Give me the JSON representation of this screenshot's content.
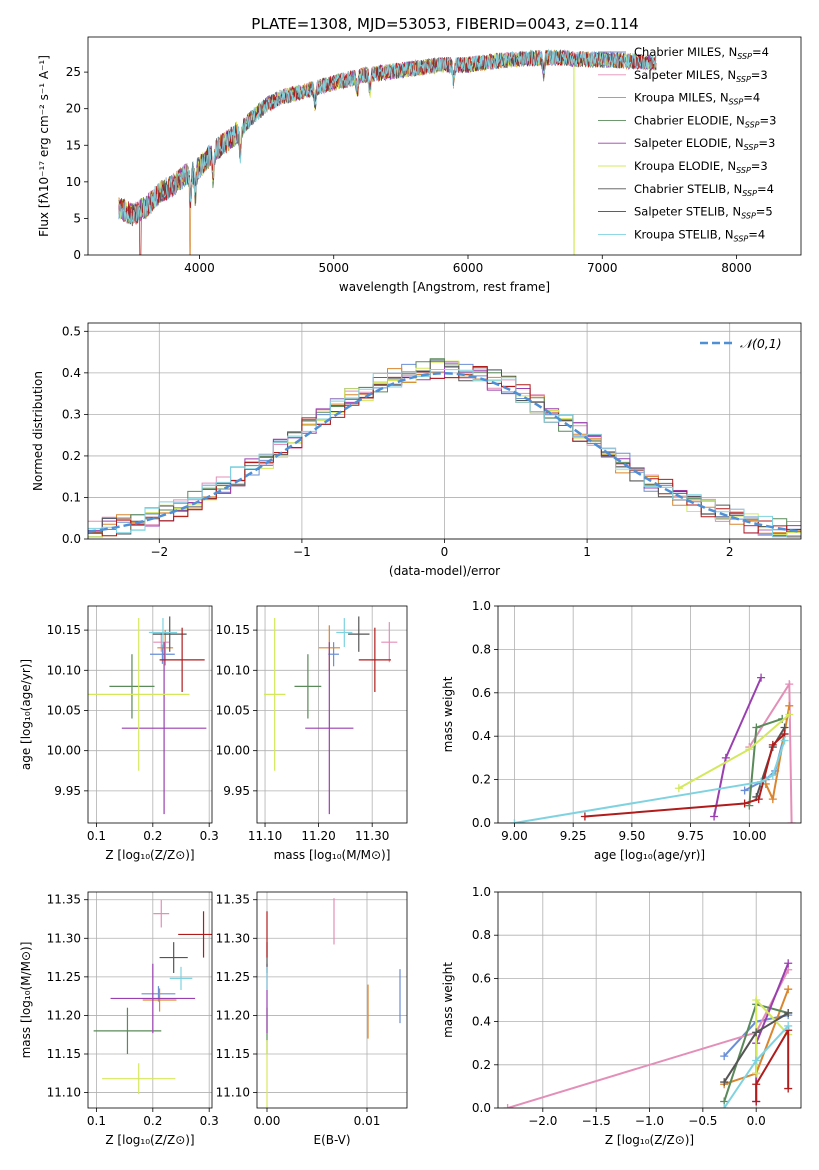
{
  "title": "PLATE=1308, MJD=53053, FIBERID=0043, z=0.114",
  "colors": {
    "chabrier_miles": "#6a8fd6",
    "salpeter_miles": "#e38fb8",
    "kroupa_miles": "#d9862e",
    "chabrier_elodie": "#5a8a5a",
    "salpeter_elodie": "#9a3fb0",
    "kroupa_elodie": "#d4e85c",
    "chabrier_stelib": "#555555",
    "salpeter_stelib": "#b01c1c",
    "kroupa_stelib": "#7fd3e0",
    "normal": "#4f8fd6"
  },
  "chart_data": [
    {
      "type": "line",
      "panel": "spectrum",
      "title": "PLATE=1308, MJD=53053, FIBERID=0043, z=0.114",
      "xlabel": "wavelength [Angstrom, rest frame]",
      "ylabel": "Flux [fλ10⁻¹⁷ erg cm⁻² s⁻¹ A⁻¹]",
      "xlim": [
        3170,
        8480
      ],
      "ylim": [
        0,
        29.8
      ],
      "xticks": [
        4000,
        5000,
        6000,
        7000,
        8000
      ],
      "yticks": [
        0,
        5,
        10,
        15,
        20,
        25
      ],
      "legend": [
        {
          "key": "chabrier_miles",
          "prefix": "Chabrier MILES, N",
          "sub": "SSP",
          "suffix": "=4"
        },
        {
          "key": "salpeter_miles",
          "prefix": "Salpeter MILES, N",
          "sub": "SSP",
          "suffix": "=3"
        },
        {
          "key": "kroupa_miles",
          "prefix": "Kroupa MILES, N",
          "sub": "SSP",
          "suffix": "=4"
        },
        {
          "key": "chabrier_elodie",
          "prefix": "Chabrier ELODIE, N",
          "sub": "SSP",
          "suffix": "=3"
        },
        {
          "key": "salpeter_elodie",
          "prefix": "Salpeter ELODIE, N",
          "sub": "SSP",
          "suffix": "=3"
        },
        {
          "key": "kroupa_elodie",
          "prefix": "Kroupa ELODIE, N",
          "sub": "SSP",
          "suffix": "=3"
        },
        {
          "key": "chabrier_stelib",
          "prefix": "Chabrier STELIB, N",
          "sub": "SSP",
          "suffix": "=4"
        },
        {
          "key": "salpeter_stelib",
          "prefix": "Salpeter STELIB, N",
          "sub": "SSP",
          "suffix": "=5"
        },
        {
          "key": "kroupa_stelib",
          "prefix": "Kroupa STELIB, N",
          "sub": "SSP",
          "suffix": "=4"
        }
      ],
      "legend_position": "upper right",
      "continuum": {
        "x": [
          3400,
          3500,
          3600,
          3700,
          3800,
          3900,
          4000,
          4100,
          4200,
          4300,
          4400,
          4500,
          4600,
          4800,
          5000,
          5200,
          5400,
          5600,
          5800,
          6000,
          6200,
          6400,
          6600,
          6800,
          7000,
          7200,
          7400
        ],
        "y": [
          6.5,
          5.5,
          6.5,
          8.5,
          9.5,
          11,
          12,
          14,
          15.5,
          17,
          19,
          20.5,
          21.5,
          22.5,
          23.5,
          24.5,
          25,
          25.5,
          26,
          26,
          26.5,
          26.8,
          27,
          26.8,
          26.7,
          26.5,
          26.3
        ]
      },
      "absorption_lines": [
        3934,
        3969,
        4102,
        4304,
        4861,
        5175,
        5270,
        5892,
        6563
      ],
      "dropouts": [
        {
          "series": "salpeter_stelib",
          "x": 3560
        },
        {
          "series": "kroupa_miles",
          "x": 3930
        },
        {
          "series": "kroupa_elodie",
          "x": 6790
        },
        {
          "series": "salpeter_stelib",
          "x": 7420
        }
      ]
    },
    {
      "type": "histogram",
      "panel": "residuals",
      "xlabel": "(data-model)/error",
      "ylabel": "Normed distribution",
      "xlim": [
        -2.5,
        2.5
      ],
      "ylim": [
        0,
        0.52
      ],
      "xticks": [
        -2,
        -1,
        0,
        1,
        2
      ],
      "yticks": [
        0,
        0.1,
        0.2,
        0.3,
        0.4,
        0.5
      ],
      "legend": "𝒩(0,1)",
      "legend_position": "upper right",
      "bin_width": 0.1,
      "base_peak_center": -0.05
    },
    {
      "type": "scatter",
      "panel": "age-vs-Z",
      "errorbars": true,
      "xlabel": "Z [log₁₀(Z/Z⊙)]",
      "ylabel": "age  [log₁₀(age/yr)]",
      "xlim": [
        0.085,
        0.305
      ],
      "ylim": [
        9.91,
        10.18
      ],
      "xticks": [
        0.1,
        0.2,
        0.3
      ],
      "yticks": [
        9.95,
        10.0,
        10.05,
        10.1,
        10.15
      ],
      "points": [
        {
          "key": "chabrier_miles",
          "x": 0.217,
          "xerr": 0.022,
          "y": 10.12,
          "yerr": 0.012
        },
        {
          "key": "salpeter_miles",
          "x": 0.215,
          "xerr": 0.014,
          "y": 10.135,
          "yerr": 0.012
        },
        {
          "key": "kroupa_miles",
          "x": 0.222,
          "xerr": 0.014,
          "y": 10.128,
          "yerr": 0.022
        },
        {
          "key": "chabrier_elodie",
          "x": 0.163,
          "xerr": 0.04,
          "y": 10.08,
          "yerr": 0.04
        },
        {
          "key": "salpeter_elodie",
          "x": 0.22,
          "xerr": 0.075,
          "y": 10.028,
          "yerr": 0.107
        },
        {
          "key": "kroupa_elodie",
          "x": 0.175,
          "xerr": 0.09,
          "y": 10.07,
          "yerr": 0.095
        },
        {
          "key": "chabrier_stelib",
          "x": 0.23,
          "xerr": 0.03,
          "y": 10.145,
          "yerr": 0.022
        },
        {
          "key": "salpeter_stelib",
          "x": 0.252,
          "xerr": 0.04,
          "y": 10.113,
          "yerr": 0.04
        },
        {
          "key": "kroupa_stelib",
          "x": 0.218,
          "xerr": 0.025,
          "y": 10.147,
          "yerr": 0.018
        }
      ]
    },
    {
      "type": "scatter",
      "panel": "age-vs-mass",
      "errorbars": true,
      "xlabel": "mass [log₁₀(M/M⊙)]",
      "ylabel": "",
      "xlim": [
        11.085,
        11.365
      ],
      "ylim": [
        9.91,
        10.18
      ],
      "xticks": [
        11.1,
        11.2,
        11.3
      ],
      "yticks": [
        9.95,
        10.0,
        10.05,
        10.1,
        10.15
      ],
      "points": [
        {
          "key": "chabrier_miles",
          "x": 11.228,
          "xerr": 0.01,
          "y": 10.12,
          "yerr": 0.015
        },
        {
          "key": "salpeter_miles",
          "x": 11.332,
          "xerr": 0.015,
          "y": 10.135,
          "yerr": 0.025
        },
        {
          "key": "kroupa_miles",
          "x": 11.22,
          "xerr": 0.02,
          "y": 10.128,
          "yerr": 0.028
        },
        {
          "key": "chabrier_elodie",
          "x": 11.18,
          "xerr": 0.025,
          "y": 10.08,
          "yerr": 0.04
        },
        {
          "key": "salpeter_elodie",
          "x": 11.22,
          "xerr": 0.045,
          "y": 10.028,
          "yerr": 0.107
        },
        {
          "key": "kroupa_elodie",
          "x": 11.118,
          "xerr": 0.02,
          "y": 10.07,
          "yerr": 0.095
        },
        {
          "key": "chabrier_stelib",
          "x": 11.275,
          "xerr": 0.02,
          "y": 10.145,
          "yerr": 0.022
        },
        {
          "key": "salpeter_stelib",
          "x": 11.305,
          "xerr": 0.03,
          "y": 10.113,
          "yerr": 0.04
        },
        {
          "key": "kroupa_stelib",
          "x": 11.248,
          "xerr": 0.015,
          "y": 10.147,
          "yerr": 0.018
        }
      ]
    },
    {
      "type": "line",
      "panel": "mass-weight-vs-age",
      "xlabel": "age  [log₁₀(age/yr)]",
      "ylabel": "mass weight",
      "xlim": [
        8.93,
        10.22
      ],
      "ylim": [
        0,
        1.0
      ],
      "xticks": [
        9.0,
        9.25,
        9.5,
        9.75,
        10.0
      ],
      "xticklabels": [
        "9.00",
        "9.25",
        "9.50",
        "9.75",
        "10.00"
      ],
      "yticks": [
        0,
        0.2,
        0.4,
        0.6,
        0.8,
        1.0
      ],
      "series": [
        {
          "key": "chabrier_miles",
          "x": [
            9.98,
            10.07,
            10.11,
            10.15
          ],
          "y": [
            0.15,
            0.2,
            0.24,
            0.41
          ]
        },
        {
          "key": "salpeter_miles",
          "x": [
            10.0,
            10.17,
            10.18
          ],
          "y": [
            0.35,
            0.64,
            0.0
          ]
        },
        {
          "key": "kroupa_miles",
          "x": [
            10.07,
            10.1,
            10.17
          ],
          "y": [
            0.18,
            0.11,
            0.54
          ]
        },
        {
          "key": "chabrier_elodie",
          "x": [
            10.0,
            10.03,
            10.14
          ],
          "y": [
            0.08,
            0.44,
            0.48
          ]
        },
        {
          "key": "salpeter_elodie",
          "x": [
            9.85,
            9.9,
            10.05
          ],
          "y": [
            0.03,
            0.3,
            0.67
          ]
        },
        {
          "key": "kroupa_elodie",
          "x": [
            9.7,
            10.0,
            10.17
          ],
          "y": [
            0.16,
            0.34,
            0.5
          ]
        },
        {
          "key": "chabrier_stelib",
          "x": [
            10.03,
            10.1,
            10.15
          ],
          "y": [
            0.12,
            0.35,
            0.44
          ]
        },
        {
          "key": "salpeter_stelib",
          "x": [
            9.3,
            9.98,
            10.04,
            10.1,
            10.15
          ],
          "y": [
            0.03,
            0.09,
            0.11,
            0.36,
            0.41
          ]
        },
        {
          "key": "kroupa_stelib",
          "x": [
            9.0,
            10.05,
            10.1,
            10.15
          ],
          "y": [
            0.0,
            0.19,
            0.22,
            0.38
          ]
        }
      ]
    },
    {
      "type": "scatter",
      "panel": "mass-vs-Z",
      "errorbars": true,
      "xlabel": "Z [log₁₀(Z/Z⊙)]",
      "ylabel": "mass [log₁₀(M/M⊙)]",
      "xlim": [
        0.085,
        0.305
      ],
      "ylim": [
        11.08,
        11.36
      ],
      "xticks": [
        0.1,
        0.2,
        0.3
      ],
      "yticks": [
        11.1,
        11.15,
        11.2,
        11.25,
        11.3,
        11.35
      ],
      "points": [
        {
          "key": "chabrier_miles",
          "x": 0.21,
          "xerr": 0.03,
          "y": 11.228,
          "yerr": 0.01
        },
        {
          "key": "salpeter_miles",
          "x": 0.215,
          "xerr": 0.014,
          "y": 11.332,
          "yerr": 0.018
        },
        {
          "key": "kroupa_miles",
          "x": 0.212,
          "xerr": 0.03,
          "y": 11.22,
          "yerr": 0.015
        },
        {
          "key": "chabrier_elodie",
          "x": 0.155,
          "xerr": 0.06,
          "y": 11.18,
          "yerr": 0.03
        },
        {
          "key": "salpeter_elodie",
          "x": 0.2,
          "xerr": 0.075,
          "y": 11.222,
          "yerr": 0.045
        },
        {
          "key": "kroupa_elodie",
          "x": 0.175,
          "xerr": 0.065,
          "y": 11.118,
          "yerr": 0.02
        },
        {
          "key": "chabrier_stelib",
          "x": 0.237,
          "xerr": 0.025,
          "y": 11.275,
          "yerr": 0.02
        },
        {
          "key": "salpeter_stelib",
          "x": 0.29,
          "xerr": 0.045,
          "y": 11.305,
          "yerr": 0.03
        },
        {
          "key": "kroupa_stelib",
          "x": 0.25,
          "xerr": 0.02,
          "y": 11.248,
          "yerr": 0.015
        }
      ]
    },
    {
      "type": "scatter",
      "panel": "mass-vs-ebv",
      "errorbars": true,
      "xlabel": "E(B-V)",
      "ylabel": "",
      "xlim": [
        -0.001,
        0.014
      ],
      "ylim": [
        11.08,
        11.36
      ],
      "xticks": [
        0.0,
        0.01
      ],
      "xticklabels": [
        "0.00",
        "0.01"
      ],
      "yticks": [
        11.1,
        11.15,
        11.2,
        11.25,
        11.3,
        11.35
      ],
      "points": [
        {
          "key": "chabrier_miles",
          "x": 0.0133,
          "y": 11.225,
          "yerr": 0.035
        },
        {
          "key": "salpeter_miles",
          "x": 0.0067,
          "y": 11.322,
          "yerr": 0.03
        },
        {
          "key": "kroupa_miles",
          "x": 0.0101,
          "y": 11.205,
          "yerr": 0.035
        },
        {
          "key": "chabrier_elodie",
          "x": 0.0,
          "y": 11.18,
          "yerr": 0.03
        },
        {
          "key": "salpeter_elodie",
          "x": 0.0,
          "y": 11.222,
          "yerr": 0.045
        },
        {
          "key": "kroupa_elodie",
          "x": 0.0,
          "y": 11.118,
          "yerr": 0.05
        },
        {
          "key": "chabrier_stelib",
          "x": 0.0,
          "y": 11.275,
          "yerr": 0.02
        },
        {
          "key": "salpeter_stelib",
          "x": 0.0,
          "y": 11.305,
          "yerr": 0.03
        },
        {
          "key": "kroupa_stelib",
          "x": 0.0,
          "y": 11.248,
          "yerr": 0.015
        }
      ]
    },
    {
      "type": "line",
      "panel": "mass-weight-vs-Z",
      "xlabel": "Z [log₁₀(Z/Z⊙)]",
      "ylabel": "mass weight",
      "xlim": [
        -2.42,
        0.42
      ],
      "ylim": [
        0,
        1.0
      ],
      "xticks": [
        -2.0,
        -1.5,
        -1.0,
        -0.5,
        0.0
      ],
      "xticklabels": [
        "−2.0",
        "−1.5",
        "−1.0",
        "−0.5",
        "0.0"
      ],
      "yticks": [
        0,
        0.2,
        0.4,
        0.6,
        0.8,
        1.0
      ],
      "series": [
        {
          "key": "chabrier_miles",
          "x": [
            -0.3,
            0.0,
            0.3
          ],
          "y": [
            0.24,
            0.4,
            0.43
          ]
        },
        {
          "key": "salpeter_miles",
          "x": [
            -2.33,
            0.0,
            0.3
          ],
          "y": [
            0.0,
            0.35,
            0.64
          ]
        },
        {
          "key": "kroupa_miles",
          "x": [
            -0.3,
            0.0,
            0.3
          ],
          "y": [
            0.11,
            0.16,
            0.55
          ]
        },
        {
          "key": "chabrier_elodie",
          "x": [
            -0.3,
            0.0,
            0.3
          ],
          "y": [
            0.03,
            0.48,
            0.44
          ]
        },
        {
          "key": "salpeter_elodie",
          "x": [
            0.0,
            0.0,
            0.3
          ],
          "y": [
            0.03,
            0.3,
            0.67
          ]
        },
        {
          "key": "kroupa_elodie",
          "x": [
            0.0,
            0.0,
            0.3
          ],
          "y": [
            0.16,
            0.5,
            0.34
          ]
        },
        {
          "key": "chabrier_stelib",
          "x": [
            -0.3,
            0.0,
            0.3
          ],
          "y": [
            0.12,
            0.35,
            0.44
          ]
        },
        {
          "key": "salpeter_stelib",
          "x": [
            0.0,
            0.0,
            0.3,
            0.3
          ],
          "y": [
            0.03,
            0.11,
            0.36,
            0.09
          ]
        },
        {
          "key": "kroupa_stelib",
          "x": [
            -0.3,
            0.0,
            0.3
          ],
          "y": [
            0.0,
            0.22,
            0.38
          ]
        }
      ]
    }
  ]
}
